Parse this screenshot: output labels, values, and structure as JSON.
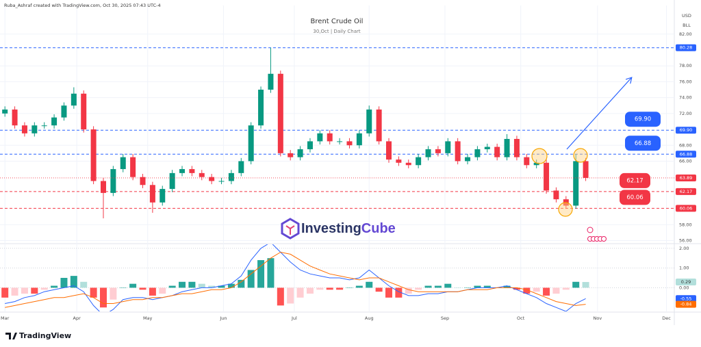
{
  "chart_data": {
    "type": "candlestick",
    "credit": "Ruba_Ashraf created with TradingView.com, Oct 30, 2025 07:43 UTC-4",
    "title": "Brent Crude Oil",
    "subtitle": "30,Oct | Daily Chart",
    "currency": "USD",
    "unit": "BLL",
    "watermark": {
      "part1": "Investing",
      "part2": "Cube"
    },
    "brand": "TradingView",
    "up_color": "#089981",
    "down_color": "#f23645",
    "open": [
      72.0,
      72.5,
      70.5,
      69.5,
      70.5,
      70.5,
      71.5,
      73,
      74.5,
      70,
      63.5,
      62,
      65,
      66.5,
      64,
      63,
      60.8,
      62.5,
      64.5,
      65,
      64.5,
      64,
      63.5,
      63.5,
      64.5,
      66,
      70.5,
      75,
      77,
      67,
      66.5,
      67.5,
      68.5,
      69.5,
      68.5,
      68.5,
      68,
      69.5,
      72.5,
      68.5,
      66.2,
      65.8,
      65.5,
      66.5,
      67.5,
      67,
      68.5,
      66,
      66.5,
      67.5,
      67.8,
      66.5,
      68.8,
      66.5,
      65.5,
      65.8,
      62.3,
      61.2,
      60.4,
      66
    ],
    "high": [
      72.9,
      72.9,
      70.9,
      70.9,
      70.9,
      71.9,
      73.4,
      75.3,
      74.9,
      70.4,
      63.9,
      65.4,
      66.9,
      66.9,
      64.4,
      63.4,
      62.9,
      64.9,
      65.4,
      65.4,
      64.9,
      64.4,
      63.9,
      64.9,
      66.4,
      70.9,
      75.4,
      80.28,
      77.4,
      67.4,
      67.9,
      68.9,
      69.9,
      69.9,
      68.9,
      68.9,
      69.9,
      73,
      72.9,
      68.9,
      66.6,
      66.2,
      66.9,
      67.9,
      67.9,
      68.9,
      68.9,
      66.9,
      67.9,
      68.2,
      68.2,
      69.4,
      69.2,
      66.9,
      66.2,
      66.2,
      62.7,
      61.6,
      66.9,
      66.4
    ],
    "low": [
      71.6,
      70.1,
      69.1,
      69.1,
      70.1,
      70.1,
      71.1,
      72.6,
      69.6,
      63.1,
      58.8,
      61.6,
      64.6,
      63.6,
      62.6,
      59.5,
      60.4,
      62.1,
      64.1,
      64.1,
      63.6,
      63.1,
      63.1,
      63.1,
      64.1,
      65.6,
      70.1,
      74.6,
      66.6,
      66.1,
      66.1,
      67.1,
      68.1,
      68.1,
      68.1,
      67.6,
      67.6,
      69.1,
      68.1,
      65.8,
      65.4,
      65.1,
      65.1,
      66.1,
      66.6,
      66.6,
      65.6,
      65.6,
      66.1,
      67.1,
      66.1,
      66.1,
      66.1,
      65.1,
      65.1,
      61.9,
      60.8,
      60.0,
      60.0,
      63.5
    ],
    "close": [
      72.5,
      70.5,
      69.5,
      70.5,
      70.5,
      71.5,
      73,
      74.5,
      70,
      63.5,
      62,
      65,
      66.5,
      64,
      63,
      60.8,
      62.5,
      64.5,
      65,
      64.5,
      64,
      63.5,
      63.5,
      64.5,
      66,
      70.5,
      75,
      77,
      67,
      66.5,
      67.5,
      68.5,
      69.5,
      68.5,
      68.5,
      68,
      69.5,
      72.5,
      68.5,
      66.2,
      65.8,
      65.5,
      66.5,
      67.5,
      67,
      68.5,
      66,
      66.5,
      67.5,
      67.8,
      66.5,
      68.8,
      66.5,
      65.5,
      65.8,
      62.3,
      61.2,
      60.4,
      66,
      63.89
    ],
    "xlim": [
      -0.5,
      68
    ],
    "xticks": [
      {
        "value": 0,
        "label": "Mar"
      },
      {
        "value": 7.3,
        "label": "Apr"
      },
      {
        "value": 14.5,
        "label": "May"
      },
      {
        "value": 22.2,
        "label": "Jun"
      },
      {
        "value": 29.4,
        "label": "Jul"
      },
      {
        "value": 37.0,
        "label": "Aug"
      },
      {
        "value": 44.7,
        "label": "Sep"
      },
      {
        "value": 52.4,
        "label": "Oct"
      },
      {
        "value": 60.2,
        "label": "Nov"
      },
      {
        "value": 67.2,
        "label": "Dec"
      }
    ],
    "ylim": [
      55.7,
      85.6
    ],
    "yticks": [
      {
        "value": 82,
        "label": "82.00"
      },
      {
        "value": 78,
        "label": "78.00"
      },
      {
        "value": 76,
        "label": "76.00"
      },
      {
        "value": 74,
        "label": "74.00"
      },
      {
        "value": 72,
        "label": "72.00"
      },
      {
        "value": 68,
        "label": "68.00"
      },
      {
        "value": 66,
        "label": "66.00"
      },
      {
        "value": 58,
        "label": "58.00"
      },
      {
        "value": 56,
        "label": "56.00"
      }
    ],
    "grid": true,
    "levels": [
      {
        "value": 80.28,
        "color": "#2962ff",
        "callout": false
      },
      {
        "value": 69.9,
        "label": "69.90",
        "color": "#2962ff",
        "callout": true
      },
      {
        "value": 66.88,
        "color": "#2962ff",
        "callout": true
      },
      {
        "value": 62.17,
        "color": "#f23645",
        "callout": true
      },
      {
        "value": 60.06,
        "color": "#f23645",
        "callout": true
      }
    ],
    "macd_pane": {
      "histogram": [
        -0.5,
        -0.4,
        -0.3,
        -0.3,
        -0.1,
        0.1,
        0.5,
        0.6,
        0.3,
        -0.5,
        -1.0,
        -0.6,
        0.0,
        0.2,
        -0.1,
        -0.4,
        -0.3,
        0.1,
        0.3,
        0.3,
        0.2,
        0.1,
        0.1,
        0.2,
        0.4,
        0.9,
        1.4,
        1.5,
        -0.9,
        -0.8,
        -0.5,
        -0.3,
        -0.1,
        -0.1,
        -0.1,
        0.0,
        0.1,
        0.3,
        -0.2,
        -0.5,
        -0.5,
        -0.3,
        -0.1,
        0.1,
        0.1,
        0.2,
        0.0,
        0.0,
        0.1,
        0.1,
        0.0,
        0.1,
        -0.1,
        -0.3,
        -0.2,
        -0.4,
        -0.3,
        -0.1,
        0.3,
        0.29
      ],
      "macd": [
        -0.8,
        -0.7,
        -0.5,
        -0.4,
        -0.2,
        -0.1,
        0.0,
        0.1,
        -0.2,
        -0.9,
        -1.4,
        -1.1,
        -0.6,
        -0.5,
        -0.5,
        -0.6,
        -0.5,
        -0.4,
        -0.2,
        -0.1,
        0.0,
        0.0,
        0.1,
        0.2,
        0.6,
        1.4,
        2.0,
        2.3,
        1.8,
        1.3,
        0.9,
        0.7,
        0.6,
        0.5,
        0.5,
        0.4,
        0.5,
        0.9,
        0.5,
        0.1,
        -0.2,
        -0.4,
        -0.4,
        -0.3,
        -0.3,
        -0.2,
        -0.2,
        -0.1,
        0.0,
        0.0,
        0.0,
        0.1,
        -0.1,
        -0.3,
        -0.5,
        -0.8,
        -1.0,
        -1.2,
        -0.8,
        -0.55
      ],
      "signal": [
        -1.0,
        -0.9,
        -0.8,
        -0.7,
        -0.6,
        -0.5,
        -0.5,
        -0.4,
        -0.3,
        -0.5,
        -0.8,
        -0.8,
        -0.7,
        -0.6,
        -0.6,
        -0.5,
        -0.5,
        -0.4,
        -0.3,
        -0.3,
        -0.2,
        -0.1,
        -0.1,
        0.0,
        0.3,
        0.7,
        1.1,
        1.5,
        1.8,
        1.7,
        1.4,
        1.1,
        0.9,
        0.7,
        0.6,
        0.5,
        0.4,
        0.5,
        0.5,
        0.3,
        0.1,
        -0.1,
        -0.2,
        -0.2,
        -0.2,
        -0.2,
        -0.2,
        -0.1,
        -0.1,
        -0.1,
        0.0,
        0.0,
        0.0,
        -0.1,
        -0.3,
        -0.5,
        -0.7,
        -0.8,
        -0.9,
        -0.84
      ],
      "macd_color": "#2962ff",
      "signal_color": "#ff6d00",
      "y2lim": [
        -1.2,
        2.2
      ],
      "y2ticks": [
        {
          "value": 2,
          "label": "2.00"
        },
        {
          "value": 1,
          "label": "1.00"
        },
        {
          "value": 0,
          "label": "0.00"
        }
      ]
    }
  }
}
